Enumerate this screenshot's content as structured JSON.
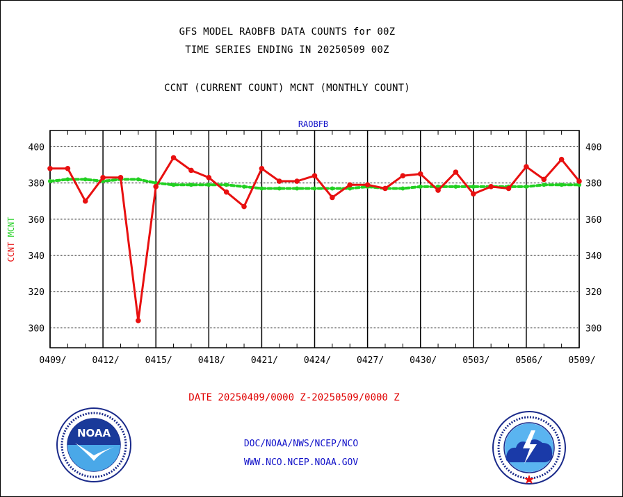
{
  "header": {
    "line1": "GFS MODEL RAOBFB DATA COUNTS for 00Z",
    "line2": "TIME SERIES ENDING IN 20250509 00Z",
    "line3": "CCNT (CURRENT COUNT) MCNT (MONTHLY COUNT)"
  },
  "footer": {
    "date_range": "DATE 20250409/0000 Z-20250509/0000 Z",
    "agency": "DOC/NOAA/NWS/NCEP/NCO",
    "website": "WWW.NCO.NCEP.NOAA.GOV"
  },
  "logos": {
    "left": {
      "icon": "noaa-logo",
      "text": "NOAA"
    },
    "right": {
      "icon": "nws-logo"
    }
  },
  "colors": {
    "ccnt": "#e81010",
    "mcnt": "#22d022",
    "title_blue": "#1010c8"
  },
  "chart_data": {
    "type": "line",
    "title": "RAOBFB",
    "ylabel_left": [
      "CCNT",
      "MCNT"
    ],
    "ylim": [
      289,
      409
    ],
    "yticks": [
      300,
      320,
      340,
      360,
      380,
      400
    ],
    "x": [
      "0409",
      "0410",
      "0411",
      "0412",
      "0413",
      "0414",
      "0415",
      "0416",
      "0417",
      "0418",
      "0419",
      "0420",
      "0421",
      "0422",
      "0423",
      "0424",
      "0425",
      "0426",
      "0427",
      "0428",
      "0429",
      "0430",
      "0501",
      "0502",
      "0503",
      "0504",
      "0505",
      "0506",
      "0507",
      "0508",
      "0509"
    ],
    "xtick_labels": [
      "0409/",
      "0412/",
      "0415/",
      "0418/",
      "0421/",
      "0424/",
      "0427/",
      "0430/",
      "0503/",
      "0506/",
      "0509/"
    ],
    "grid": true,
    "series": [
      {
        "name": "CCNT",
        "color": "#e81010",
        "style": "solid",
        "values": [
          388,
          388,
          370,
          383,
          383,
          304,
          378,
          394,
          387,
          383,
          375,
          367,
          388,
          381,
          381,
          384,
          372,
          379,
          379,
          377,
          384,
          385,
          376,
          386,
          374,
          378,
          377,
          389,
          382,
          393,
          381
        ]
      },
      {
        "name": "MCNT",
        "color": "#22d022",
        "style": "dotted",
        "values": [
          381,
          382,
          382,
          381,
          382,
          382,
          380,
          379,
          379,
          379,
          379,
          378,
          377,
          377,
          377,
          377,
          377,
          377,
          378,
          377,
          377,
          378,
          378,
          378,
          378,
          378,
          378,
          378,
          379,
          379,
          379
        ]
      }
    ]
  }
}
